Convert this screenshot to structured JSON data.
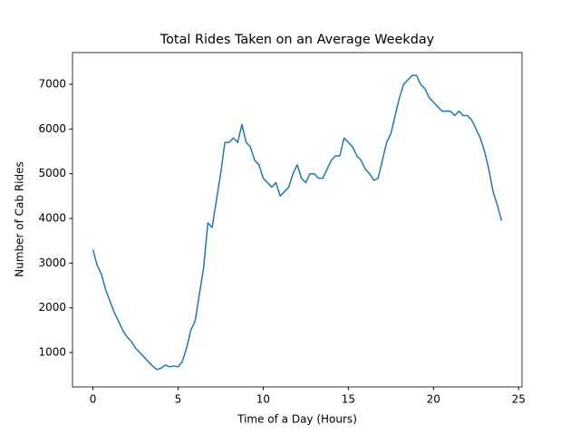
{
  "chart_data": {
    "type": "line",
    "title": "Total Rides Taken on an Average Weekday",
    "x_label": "Time of a Day (Hours)",
    "y_label": "Number of Cab Rides",
    "x": [
      0,
      0.25,
      0.5,
      0.75,
      1,
      1.25,
      1.5,
      1.75,
      2,
      2.25,
      2.5,
      2.75,
      3,
      3.25,
      3.5,
      3.75,
      4,
      4.25,
      4.5,
      4.75,
      5,
      5.25,
      5.5,
      5.75,
      6,
      6.25,
      6.5,
      6.75,
      7,
      7.25,
      7.5,
      7.75,
      8,
      8.25,
      8.5,
      8.75,
      9,
      9.25,
      9.5,
      9.75,
      10,
      10.25,
      10.5,
      10.75,
      11,
      11.25,
      11.5,
      11.75,
      12,
      12.25,
      12.5,
      12.75,
      13,
      13.25,
      13.5,
      13.75,
      14,
      14.25,
      14.5,
      14.75,
      15,
      15.25,
      15.5,
      15.75,
      16,
      16.25,
      16.5,
      16.75,
      17,
      17.25,
      17.5,
      17.75,
      18,
      18.25,
      18.5,
      18.75,
      19,
      19.25,
      19.5,
      19.75,
      20,
      20.25,
      20.5,
      20.75,
      21,
      21.25,
      21.5,
      21.75,
      22,
      22.25,
      22.5,
      22.75,
      23,
      23.25,
      23.5,
      23.75,
      24
    ],
    "series": [
      {
        "name": "rides",
        "color": "#1f77b4",
        "values": [
          3300,
          2950,
          2750,
          2400,
          2150,
          1900,
          1700,
          1500,
          1350,
          1250,
          1100,
          1000,
          900,
          800,
          700,
          620,
          650,
          720,
          680,
          700,
          680,
          800,
          1100,
          1500,
          1700,
          2300,
          2900,
          3900,
          3800,
          4400,
          5000,
          5700,
          5700,
          5800,
          5700,
          6100,
          5700,
          5600,
          5300,
          5200,
          4900,
          4800,
          4700,
          4800,
          4500,
          4600,
          4700,
          5000,
          5200,
          4900,
          4800,
          5000,
          5000,
          4900,
          4900,
          5100,
          5300,
          5400,
          5400,
          5800,
          5700,
          5600,
          5400,
          5300,
          5100,
          5000,
          4850,
          4900,
          5300,
          5700,
          5900,
          6300,
          6700,
          7000,
          7100,
          7200,
          7200,
          7000,
          6900,
          6700,
          6600,
          6500,
          6400,
          6400,
          6400,
          6300,
          6400,
          6300,
          6300,
          6200,
          6000,
          5800,
          5500,
          5100,
          4600,
          4300,
          3950
        ]
      }
    ],
    "xlim": [
      -1.2,
      25.2
    ],
    "xticks": [
      0,
      5,
      10,
      15,
      20,
      25
    ],
    "ylim": [
      230,
      7710
    ],
    "yticks": [
      1000,
      2000,
      3000,
      4000,
      5000,
      6000,
      7000
    ],
    "grid": false
  }
}
